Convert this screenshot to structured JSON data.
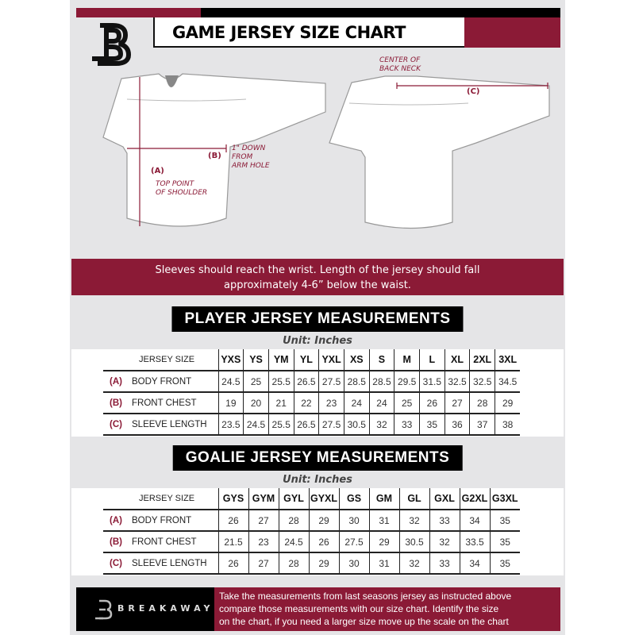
{
  "header": {
    "title": "GAME JERSEY SIZE CHART",
    "logo_letter": "B"
  },
  "colors": {
    "brand": "#8b1a36",
    "dark": "#000000",
    "background": "#e5e5e7"
  },
  "diagram": {
    "label_a": "(A)",
    "label_b": "(B)",
    "label_c": "(C)",
    "note_a": [
      "TOP POINT",
      "OF SHOULDER"
    ],
    "note_b": [
      "1\" DOWN",
      "FROM",
      "ARM HOLE"
    ],
    "note_c": [
      "CENTER OF",
      "BACK NECK"
    ]
  },
  "banner": [
    "Sleeves should reach the wrist. Length of the jersey should fall",
    "approximately 4-6” below the waist."
  ],
  "player": {
    "title": "PLAYER JERSEY MEASUREMENTS",
    "unit": "Unit: Inches",
    "size_header": "JERSEY SIZE",
    "sizes": [
      "YXS",
      "YS",
      "YM",
      "YL",
      "YXL",
      "XS",
      "S",
      "M",
      "L",
      "XL",
      "2XL",
      "3XL"
    ],
    "rows": [
      {
        "tag": "(A)",
        "label": "BODY FRONT",
        "values": [
          "24.5",
          "25",
          "25.5",
          "26.5",
          "27.5",
          "28.5",
          "28.5",
          "29.5",
          "31.5",
          "32.5",
          "32.5",
          "34.5"
        ]
      },
      {
        "tag": "(B)",
        "label": "FRONT CHEST",
        "values": [
          "19",
          "20",
          "21",
          "22",
          "23",
          "24",
          "24",
          "25",
          "26",
          "27",
          "28",
          "29"
        ]
      },
      {
        "tag": "(C)",
        "label": "SLEEVE LENGTH",
        "values": [
          "23.5",
          "24.5",
          "25.5",
          "26.5",
          "27.5",
          "30.5",
          "32",
          "33",
          "35",
          "36",
          "37",
          "38"
        ]
      }
    ]
  },
  "goalie": {
    "title": "GOALIE JERSEY MEASUREMENTS",
    "unit": "Unit: Inches",
    "size_header": "JERSEY SIZE",
    "sizes": [
      "GYS",
      "GYM",
      "GYL",
      "GYXL",
      "GS",
      "GM",
      "GL",
      "GXL",
      "G2XL",
      "G3XL"
    ],
    "rows": [
      {
        "tag": "(A)",
        "label": "BODY FRONT",
        "values": [
          "26",
          "27",
          "28",
          "29",
          "30",
          "31",
          "32",
          "33",
          "34",
          "35"
        ]
      },
      {
        "tag": "(B)",
        "label": "FRONT CHEST",
        "values": [
          "21.5",
          "23",
          "24.5",
          "26",
          "27.5",
          "29",
          "30.5",
          "32",
          "33.5",
          "35"
        ]
      },
      {
        "tag": "(C)",
        "label": "SLEEVE LENGTH",
        "values": [
          "26",
          "27",
          "28",
          "29",
          "30",
          "31",
          "32",
          "33",
          "34",
          "35"
        ]
      }
    ]
  },
  "footer": {
    "brand": "BREAKAWAY",
    "text": [
      "Take the measurements from last seasons jersey as instructed above",
      "compare those measurements  with our size chart. Identify the size",
      "on the chart, if you need a larger size move up the scale on the chart"
    ]
  }
}
